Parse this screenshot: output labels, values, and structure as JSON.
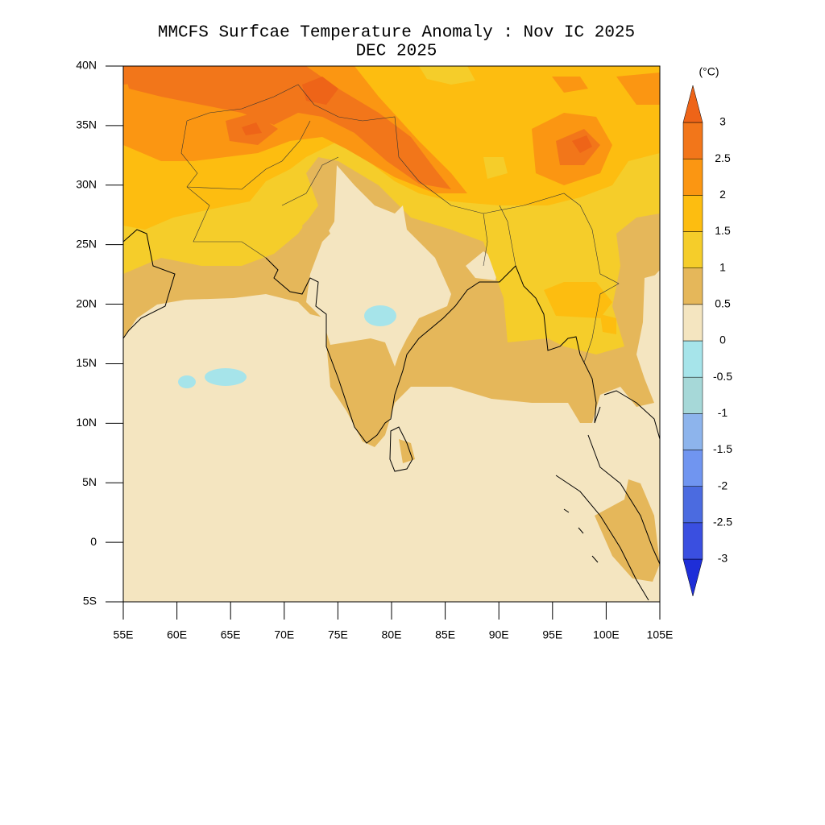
{
  "title": "MMCFS Surfcae Temperature Anomaly : Nov IC 2025",
  "subtitle": "DEC 2025",
  "map": {
    "xlim": [
      55,
      105
    ],
    "ylim": [
      -5,
      40
    ],
    "xticks": [
      {
        "value": 55,
        "label": "55E"
      },
      {
        "value": 60,
        "label": "60E"
      },
      {
        "value": 65,
        "label": "65E"
      },
      {
        "value": 70,
        "label": "70E"
      },
      {
        "value": 75,
        "label": "75E"
      },
      {
        "value": 80,
        "label": "80E"
      },
      {
        "value": 85,
        "label": "85E"
      },
      {
        "value": 90,
        "label": "90E"
      },
      {
        "value": 95,
        "label": "95E"
      },
      {
        "value": 100,
        "label": "100E"
      },
      {
        "value": 105,
        "label": "105E"
      }
    ],
    "yticks": [
      {
        "value": -5,
        "label": "5S"
      },
      0,
      {
        "value": 5,
        "label": "5N"
      },
      {
        "value": 10,
        "label": "10N"
      },
      {
        "value": 15,
        "label": "15N"
      },
      {
        "value": 20,
        "label": "20N"
      },
      {
        "value": 25,
        "label": "25N"
      },
      {
        "value": 30,
        "label": "30N"
      },
      {
        "value": 35,
        "label": "35N"
      },
      {
        "value": 40,
        "label": "40N"
      }
    ]
  },
  "colorbar": {
    "unit": "(°C)",
    "levels": [
      -3,
      -2.5,
      -2,
      -1.5,
      -1,
      -0.5,
      0,
      0.5,
      1,
      1.5,
      2,
      2.5,
      3
    ],
    "colors": [
      "#1e2ed8",
      "#3a4fe0",
      "#4b6be0",
      "#7095f0",
      "#8db4ec",
      "#a6d8d8",
      "#a6e4ea",
      "#f4e5c0",
      "#e5b75a",
      "#f5cd2a",
      "#fdbd10",
      "#fb9612",
      "#f2761a",
      "#ee6418"
    ]
  }
}
